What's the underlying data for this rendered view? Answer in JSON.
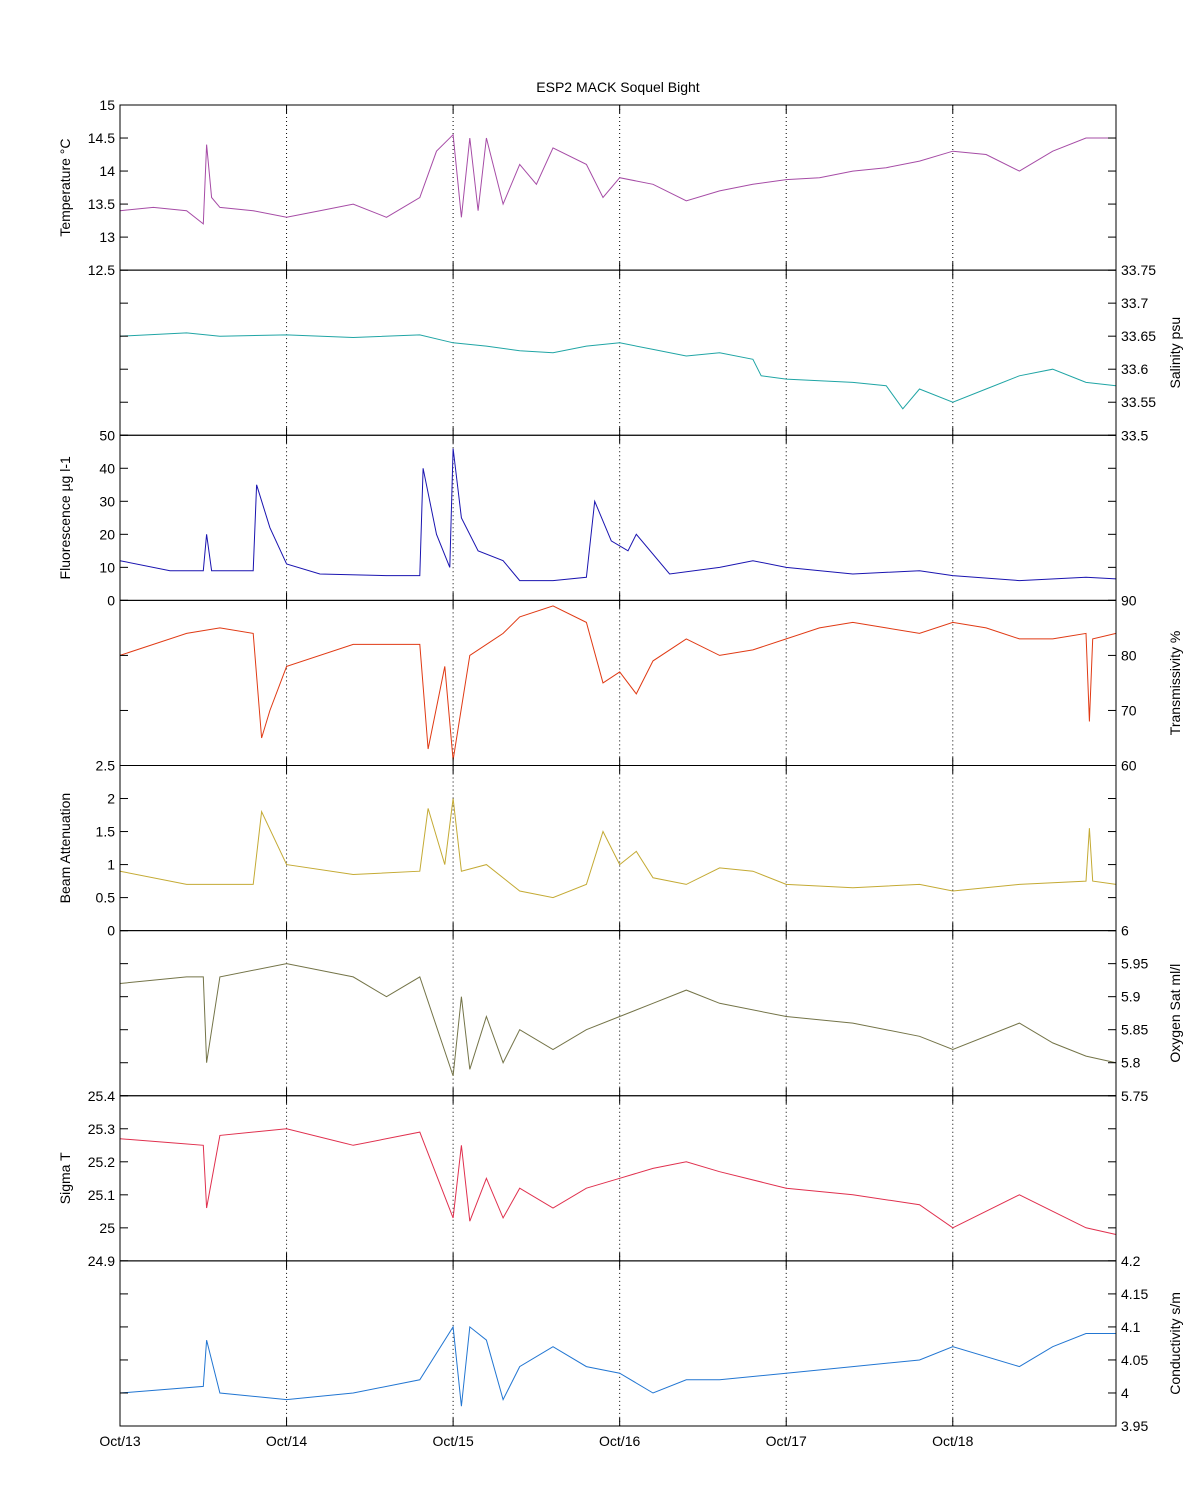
{
  "chart_data": {
    "type": "line",
    "title": "ESP2 MACK  Soquel Bight",
    "x_unit": "days since Oct/13",
    "xlim": [
      0,
      5.98
    ],
    "x_ticks": [
      0,
      1,
      2,
      3,
      4,
      5
    ],
    "x_tick_labels": [
      "Oct/13",
      "Oct/14",
      "Oct/15",
      "Oct/16",
      "Oct/17",
      "Oct/18"
    ],
    "grid": "vertical dotted at day ticks",
    "panels": [
      {
        "name": "temperature",
        "ylabel": "Temperature °C",
        "axis": "left",
        "color": "#a64ca6",
        "ylim": [
          12.5,
          15
        ],
        "ticks": [
          12.5,
          13,
          13.5,
          14,
          14.5,
          15
        ],
        "tick_labels": [
          "12.5",
          "13",
          "13.5",
          "14",
          "14.5",
          "15"
        ],
        "points": [
          [
            0,
            13.4
          ],
          [
            0.2,
            13.45
          ],
          [
            0.4,
            13.4
          ],
          [
            0.5,
            13.2
          ],
          [
            0.52,
            14.4
          ],
          [
            0.55,
            13.6
          ],
          [
            0.6,
            13.45
          ],
          [
            0.8,
            13.4
          ],
          [
            1.0,
            13.3
          ],
          [
            1.2,
            13.4
          ],
          [
            1.4,
            13.5
          ],
          [
            1.6,
            13.3
          ],
          [
            1.8,
            13.6
          ],
          [
            1.9,
            14.3
          ],
          [
            2.0,
            14.55
          ],
          [
            2.05,
            13.3
          ],
          [
            2.1,
            14.5
          ],
          [
            2.15,
            13.4
          ],
          [
            2.2,
            14.5
          ],
          [
            2.3,
            13.5
          ],
          [
            2.4,
            14.1
          ],
          [
            2.5,
            13.8
          ],
          [
            2.6,
            14.35
          ],
          [
            2.8,
            14.1
          ],
          [
            2.9,
            13.6
          ],
          [
            3.0,
            13.9
          ],
          [
            3.2,
            13.8
          ],
          [
            3.4,
            13.55
          ],
          [
            3.6,
            13.7
          ],
          [
            3.8,
            13.8
          ],
          [
            4.0,
            13.87
          ],
          [
            4.2,
            13.9
          ],
          [
            4.4,
            14.0
          ],
          [
            4.6,
            14.05
          ],
          [
            4.8,
            14.15
          ],
          [
            5.0,
            14.3
          ],
          [
            5.2,
            14.25
          ],
          [
            5.4,
            14.0
          ],
          [
            5.6,
            14.3
          ],
          [
            5.8,
            14.5
          ],
          [
            5.98,
            14.5
          ]
        ]
      },
      {
        "name": "salinity",
        "ylabel": "Salinity psu",
        "axis": "right",
        "color": "#20a5a5",
        "ylim": [
          33.5,
          33.75
        ],
        "ticks": [
          33.5,
          33.55,
          33.6,
          33.65,
          33.7,
          33.75
        ],
        "tick_labels": [
          "33.5",
          "33.55",
          "33.6",
          "33.65",
          "33.7",
          "33.75"
        ],
        "points": [
          [
            0,
            33.65
          ],
          [
            0.4,
            33.655
          ],
          [
            0.6,
            33.65
          ],
          [
            1.0,
            33.652
          ],
          [
            1.4,
            33.648
          ],
          [
            1.8,
            33.652
          ],
          [
            2.0,
            33.64
          ],
          [
            2.2,
            33.635
          ],
          [
            2.4,
            33.628
          ],
          [
            2.6,
            33.625
          ],
          [
            2.8,
            33.635
          ],
          [
            3.0,
            33.64
          ],
          [
            3.2,
            33.63
          ],
          [
            3.4,
            33.62
          ],
          [
            3.6,
            33.625
          ],
          [
            3.8,
            33.615
          ],
          [
            3.85,
            33.59
          ],
          [
            4.0,
            33.585
          ],
          [
            4.4,
            33.58
          ],
          [
            4.6,
            33.575
          ],
          [
            4.7,
            33.54
          ],
          [
            4.8,
            33.57
          ],
          [
            5.0,
            33.55
          ],
          [
            5.2,
            33.57
          ],
          [
            5.4,
            33.59
          ],
          [
            5.6,
            33.6
          ],
          [
            5.8,
            33.58
          ],
          [
            5.98,
            33.575
          ]
        ]
      },
      {
        "name": "fluorescence",
        "ylabel": "Fluorescence µg l-1",
        "axis": "left",
        "color": "#1a14b0",
        "ylim": [
          0,
          50
        ],
        "ticks": [
          0,
          10,
          20,
          30,
          40,
          50
        ],
        "tick_labels": [
          "0",
          "10",
          "20",
          "30",
          "40",
          "50"
        ],
        "points": [
          [
            0,
            12
          ],
          [
            0.3,
            9
          ],
          [
            0.5,
            9
          ],
          [
            0.52,
            20
          ],
          [
            0.55,
            9
          ],
          [
            0.8,
            9
          ],
          [
            0.82,
            35
          ],
          [
            0.9,
            22
          ],
          [
            1.0,
            11
          ],
          [
            1.2,
            8
          ],
          [
            1.6,
            7.5
          ],
          [
            1.8,
            7.5
          ],
          [
            1.82,
            40
          ],
          [
            1.9,
            20
          ],
          [
            1.98,
            10
          ],
          [
            2.0,
            46
          ],
          [
            2.05,
            25
          ],
          [
            2.15,
            15
          ],
          [
            2.3,
            12
          ],
          [
            2.4,
            6
          ],
          [
            2.6,
            6
          ],
          [
            2.8,
            7
          ],
          [
            2.85,
            30
          ],
          [
            2.95,
            18
          ],
          [
            3.05,
            15
          ],
          [
            3.1,
            20
          ],
          [
            3.3,
            8
          ],
          [
            3.6,
            10
          ],
          [
            3.8,
            12
          ],
          [
            4.0,
            10
          ],
          [
            4.4,
            8
          ],
          [
            4.8,
            9
          ],
          [
            5.0,
            7.5
          ],
          [
            5.4,
            6
          ],
          [
            5.8,
            7
          ],
          [
            5.98,
            6.5
          ]
        ]
      },
      {
        "name": "transmissivity",
        "ylabel": "Transmissivity %",
        "axis": "right",
        "color": "#e03a14",
        "ylim": [
          60,
          90
        ],
        "ticks": [
          60,
          70,
          80,
          90
        ],
        "tick_labels": [
          "60",
          "70",
          "80",
          "90"
        ],
        "points": [
          [
            0,
            80
          ],
          [
            0.4,
            84
          ],
          [
            0.6,
            85
          ],
          [
            0.8,
            84
          ],
          [
            0.85,
            65
          ],
          [
            0.9,
            70
          ],
          [
            1.0,
            78
          ],
          [
            1.4,
            82
          ],
          [
            1.8,
            82
          ],
          [
            1.85,
            63
          ],
          [
            1.95,
            78
          ],
          [
            2.0,
            61
          ],
          [
            2.1,
            80
          ],
          [
            2.3,
            84
          ],
          [
            2.4,
            87
          ],
          [
            2.6,
            89
          ],
          [
            2.8,
            86
          ],
          [
            2.9,
            75
          ],
          [
            3.0,
            77
          ],
          [
            3.1,
            73
          ],
          [
            3.2,
            79
          ],
          [
            3.4,
            83
          ],
          [
            3.6,
            80
          ],
          [
            3.8,
            81
          ],
          [
            4.0,
            83
          ],
          [
            4.2,
            85
          ],
          [
            4.4,
            86
          ],
          [
            4.6,
            85
          ],
          [
            4.8,
            84
          ],
          [
            5.0,
            86
          ],
          [
            5.2,
            85
          ],
          [
            5.4,
            83
          ],
          [
            5.6,
            83
          ],
          [
            5.8,
            84
          ],
          [
            5.82,
            68
          ],
          [
            5.84,
            83
          ],
          [
            5.98,
            84
          ]
        ]
      },
      {
        "name": "beam_attenuation",
        "ylabel": "Beam Attenuation",
        "axis": "left",
        "color": "#c4aa34",
        "ylim": [
          0,
          2.5
        ],
        "ticks": [
          0,
          0.5,
          1,
          1.5,
          2,
          2.5
        ],
        "tick_labels": [
          "0",
          "0.5",
          "1",
          "1.5",
          "2",
          "2.5"
        ],
        "points": [
          [
            0,
            0.9
          ],
          [
            0.4,
            0.7
          ],
          [
            0.8,
            0.7
          ],
          [
            0.85,
            1.8
          ],
          [
            1.0,
            1.0
          ],
          [
            1.4,
            0.85
          ],
          [
            1.8,
            0.9
          ],
          [
            1.85,
            1.85
          ],
          [
            1.95,
            1.0
          ],
          [
            2.0,
            2.0
          ],
          [
            2.05,
            0.9
          ],
          [
            2.2,
            1.0
          ],
          [
            2.4,
            0.6
          ],
          [
            2.6,
            0.5
          ],
          [
            2.8,
            0.7
          ],
          [
            2.9,
            1.5
          ],
          [
            3.0,
            1.0
          ],
          [
            3.1,
            1.2
          ],
          [
            3.2,
            0.8
          ],
          [
            3.4,
            0.7
          ],
          [
            3.6,
            0.95
          ],
          [
            3.8,
            0.9
          ],
          [
            4.0,
            0.7
          ],
          [
            4.4,
            0.65
          ],
          [
            4.8,
            0.7
          ],
          [
            5.0,
            0.6
          ],
          [
            5.4,
            0.7
          ],
          [
            5.8,
            0.75
          ],
          [
            5.82,
            1.55
          ],
          [
            5.84,
            0.75
          ],
          [
            5.98,
            0.7
          ]
        ]
      },
      {
        "name": "oxygen_sat",
        "ylabel": "Oxygen Sat ml/l",
        "axis": "right",
        "color": "#747448",
        "ylim": [
          5.75,
          6
        ],
        "ticks": [
          5.75,
          5.8,
          5.85,
          5.9,
          5.95,
          6
        ],
        "tick_labels": [
          "5.75",
          "5.8",
          "5.85",
          "5.9",
          "5.95",
          "6"
        ],
        "points": [
          [
            0,
            5.92
          ],
          [
            0.4,
            5.93
          ],
          [
            0.5,
            5.93
          ],
          [
            0.52,
            5.8
          ],
          [
            0.6,
            5.93
          ],
          [
            1.0,
            5.95
          ],
          [
            1.4,
            5.93
          ],
          [
            1.6,
            5.9
          ],
          [
            1.8,
            5.93
          ],
          [
            2.0,
            5.78
          ],
          [
            2.05,
            5.9
          ],
          [
            2.1,
            5.79
          ],
          [
            2.2,
            5.87
          ],
          [
            2.3,
            5.8
          ],
          [
            2.4,
            5.85
          ],
          [
            2.6,
            5.82
          ],
          [
            2.8,
            5.85
          ],
          [
            3.0,
            5.87
          ],
          [
            3.2,
            5.89
          ],
          [
            3.4,
            5.91
          ],
          [
            3.6,
            5.89
          ],
          [
            4.0,
            5.87
          ],
          [
            4.4,
            5.86
          ],
          [
            4.8,
            5.84
          ],
          [
            5.0,
            5.82
          ],
          [
            5.4,
            5.86
          ],
          [
            5.6,
            5.83
          ],
          [
            5.8,
            5.81
          ],
          [
            5.98,
            5.8
          ]
        ]
      },
      {
        "name": "sigma_t",
        "ylabel": "Sigma T",
        "axis": "left",
        "color": "#e0304e",
        "ylim": [
          24.9,
          25.4
        ],
        "ticks": [
          24.9,
          25,
          25.1,
          25.2,
          25.3,
          25.4
        ],
        "tick_labels": [
          "24.9",
          "25",
          "25.1",
          "25.2",
          "25.3",
          "25.4"
        ],
        "points": [
          [
            0,
            25.27
          ],
          [
            0.5,
            25.25
          ],
          [
            0.52,
            25.06
          ],
          [
            0.6,
            25.28
          ],
          [
            1.0,
            25.3
          ],
          [
            1.4,
            25.25
          ],
          [
            1.8,
            25.29
          ],
          [
            2.0,
            25.03
          ],
          [
            2.05,
            25.25
          ],
          [
            2.1,
            25.02
          ],
          [
            2.2,
            25.15
          ],
          [
            2.3,
            25.03
          ],
          [
            2.4,
            25.12
          ],
          [
            2.6,
            25.06
          ],
          [
            2.8,
            25.12
          ],
          [
            3.0,
            25.15
          ],
          [
            3.2,
            25.18
          ],
          [
            3.4,
            25.2
          ],
          [
            3.6,
            25.17
          ],
          [
            4.0,
            25.12
          ],
          [
            4.4,
            25.1
          ],
          [
            4.8,
            25.07
          ],
          [
            5.0,
            25.0
          ],
          [
            5.4,
            25.1
          ],
          [
            5.6,
            25.05
          ],
          [
            5.8,
            25.0
          ],
          [
            5.98,
            24.98
          ]
        ]
      },
      {
        "name": "conductivity",
        "ylabel": "Conductivity s/m",
        "axis": "right",
        "color": "#2276d2",
        "ylim": [
          3.95,
          4.2
        ],
        "ticks": [
          3.95,
          4,
          4.05,
          4.1,
          4.15,
          4.2
        ],
        "tick_labels": [
          "3.95",
          "4",
          "4.05",
          "4.1",
          "4.15",
          "4.2"
        ],
        "points": [
          [
            0,
            4.0
          ],
          [
            0.5,
            4.01
          ],
          [
            0.52,
            4.08
          ],
          [
            0.6,
            4.0
          ],
          [
            1.0,
            3.99
          ],
          [
            1.4,
            4.0
          ],
          [
            1.8,
            4.02
          ],
          [
            2.0,
            4.1
          ],
          [
            2.05,
            3.98
          ],
          [
            2.1,
            4.1
          ],
          [
            2.2,
            4.08
          ],
          [
            2.3,
            3.99
          ],
          [
            2.4,
            4.04
          ],
          [
            2.6,
            4.07
          ],
          [
            2.8,
            4.04
          ],
          [
            3.0,
            4.03
          ],
          [
            3.2,
            4.0
          ],
          [
            3.4,
            4.02
          ],
          [
            3.6,
            4.02
          ],
          [
            4.0,
            4.03
          ],
          [
            4.4,
            4.04
          ],
          [
            4.8,
            4.05
          ],
          [
            5.0,
            4.07
          ],
          [
            5.4,
            4.04
          ],
          [
            5.6,
            4.07
          ],
          [
            5.8,
            4.09
          ],
          [
            5.98,
            4.09
          ]
        ]
      }
    ]
  }
}
